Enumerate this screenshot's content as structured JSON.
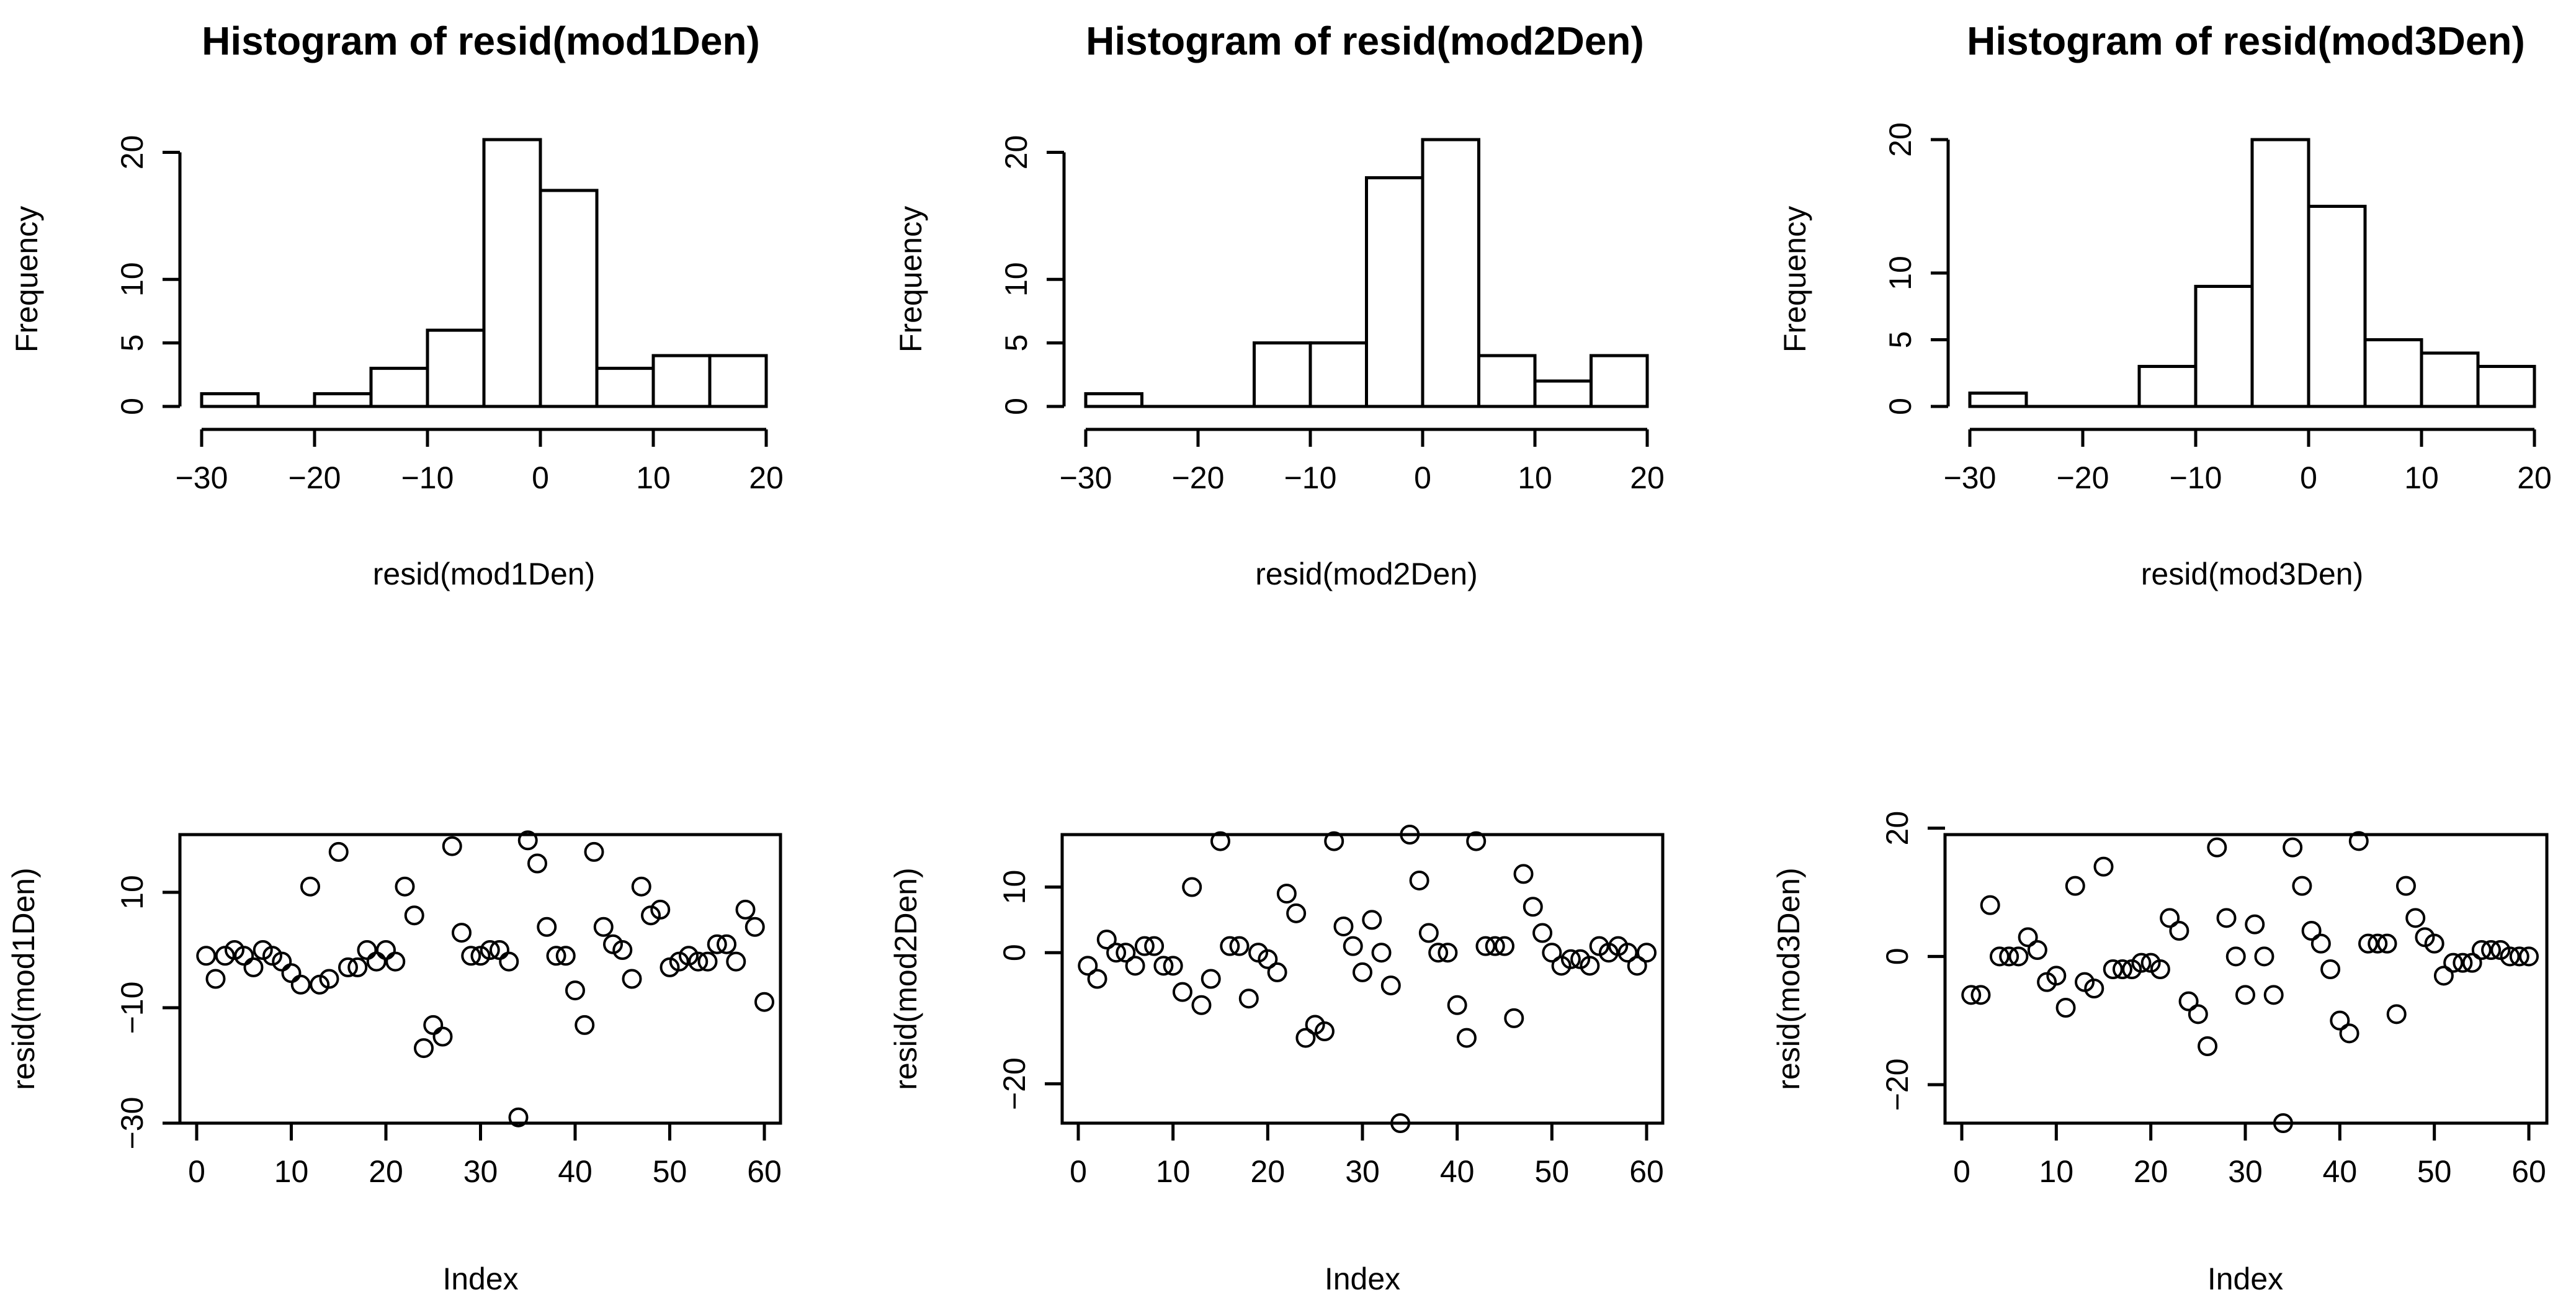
{
  "chart_data": [
    {
      "type": "histogram",
      "title": "Histogram of resid(mod1Den)",
      "xlabel": "resid(mod1Den)",
      "ylabel": "Frequency",
      "bins": [
        [
          -30,
          -25
        ],
        [
          -25,
          -20
        ],
        [
          -20,
          -15
        ],
        [
          -15,
          -10
        ],
        [
          -10,
          -5
        ],
        [
          -5,
          0
        ],
        [
          0,
          5
        ],
        [
          5,
          10
        ],
        [
          10,
          15
        ],
        [
          15,
          20
        ]
      ],
      "values": [
        1,
        0,
        1,
        3,
        6,
        21,
        17,
        3,
        4,
        4
      ],
      "xlim": [
        -30,
        20
      ],
      "ylim": [
        0,
        21
      ],
      "xticks": [
        -30,
        -20,
        -10,
        0,
        10,
        20
      ],
      "yticks": [
        0,
        5,
        10,
        20
      ],
      "grid": false
    },
    {
      "type": "histogram",
      "title": "Histogram of resid(mod2Den)",
      "xlabel": "resid(mod2Den)",
      "ylabel": "Frequency",
      "bins": [
        [
          -30,
          -25
        ],
        [
          -25,
          -20
        ],
        [
          -20,
          -15
        ],
        [
          -15,
          -10
        ],
        [
          -10,
          -5
        ],
        [
          -5,
          0
        ],
        [
          0,
          5
        ],
        [
          5,
          10
        ],
        [
          10,
          15
        ],
        [
          15,
          20
        ]
      ],
      "values": [
        1,
        0,
        0,
        5,
        5,
        18,
        21,
        4,
        2,
        4
      ],
      "xlim": [
        -30,
        20
      ],
      "ylim": [
        0,
        21
      ],
      "xticks": [
        -30,
        -20,
        -10,
        0,
        10,
        20
      ],
      "yticks": [
        0,
        5,
        10,
        20
      ],
      "grid": false
    },
    {
      "type": "histogram",
      "title": "Histogram of resid(mod3Den)",
      "xlabel": "resid(mod3Den)",
      "ylabel": "Frequency",
      "bins": [
        [
          -30,
          -25
        ],
        [
          -25,
          -20
        ],
        [
          -20,
          -15
        ],
        [
          -15,
          -10
        ],
        [
          -10,
          -5
        ],
        [
          -5,
          0
        ],
        [
          0,
          5
        ],
        [
          5,
          10
        ],
        [
          10,
          15
        ],
        [
          15,
          20
        ]
      ],
      "values": [
        1,
        0,
        0,
        3,
        9,
        20,
        15,
        5,
        4,
        3
      ],
      "xlim": [
        -30,
        20
      ],
      "ylim": [
        0,
        20
      ],
      "xticks": [
        -30,
        -20,
        -10,
        0,
        10,
        20
      ],
      "yticks": [
        0,
        5,
        10,
        20
      ],
      "grid": false
    },
    {
      "type": "scatter",
      "title": "",
      "xlabel": "Index",
      "ylabel": "resid(mod1Den)",
      "x": [
        1,
        2,
        3,
        4,
        5,
        6,
        7,
        8,
        9,
        10,
        11,
        12,
        13,
        14,
        15,
        16,
        17,
        18,
        19,
        20,
        21,
        22,
        23,
        24,
        25,
        26,
        27,
        28,
        29,
        30,
        31,
        32,
        33,
        34,
        35,
        36,
        37,
        38,
        39,
        40,
        41,
        42,
        43,
        44,
        45,
        46,
        47,
        48,
        49,
        50,
        51,
        52,
        53,
        54,
        55,
        56,
        57,
        58,
        59,
        60
      ],
      "y": [
        -1,
        -5,
        -1,
        0,
        -1,
        -3,
        0,
        -1,
        -2,
        -4,
        -6,
        11,
        -6,
        -5,
        17,
        -3,
        -3,
        0,
        -2,
        0,
        -2,
        11,
        6,
        -17,
        -13,
        -15,
        18,
        3,
        -1,
        -1,
        0,
        0,
        -2,
        -29,
        19,
        15,
        4,
        -1,
        -1,
        -7,
        -13,
        17,
        4,
        1,
        0,
        -5,
        11,
        6,
        7,
        -3,
        -2,
        -1,
        -2,
        -2,
        1,
        1,
        -2,
        7,
        4,
        -9
      ],
      "xlim": [
        0,
        60
      ],
      "ylim": [
        -30,
        20
      ],
      "xticks": [
        0,
        10,
        20,
        30,
        40,
        50,
        60
      ],
      "yticks": [
        -30,
        -10,
        10
      ],
      "grid": false
    },
    {
      "type": "scatter",
      "title": "",
      "xlabel": "Index",
      "ylabel": "resid(mod2Den)",
      "x": [
        1,
        2,
        3,
        4,
        5,
        6,
        7,
        8,
        9,
        10,
        11,
        12,
        13,
        14,
        15,
        16,
        17,
        18,
        19,
        20,
        21,
        22,
        23,
        24,
        25,
        26,
        27,
        28,
        29,
        30,
        31,
        32,
        33,
        34,
        35,
        36,
        37,
        38,
        39,
        40,
        41,
        42,
        43,
        44,
        45,
        46,
        47,
        48,
        49,
        50,
        51,
        52,
        53,
        54,
        55,
        56,
        57,
        58,
        59,
        60
      ],
      "y": [
        -2,
        -4,
        2,
        0,
        0,
        -2,
        1,
        1,
        -2,
        -2,
        -6,
        10,
        -8,
        -4,
        17,
        1,
        1,
        -7,
        0,
        -1,
        -3,
        9,
        6,
        -13,
        -11,
        -12,
        17,
        4,
        1,
        -3,
        5,
        0,
        -5,
        -26,
        18,
        11,
        3,
        0,
        0,
        -8,
        -13,
        17,
        1,
        1,
        1,
        -10,
        12,
        7,
        3,
        0,
        -2,
        -1,
        -1,
        -2,
        1,
        0,
        1,
        0,
        -2,
        0
      ],
      "xlim": [
        0,
        60
      ],
      "ylim": [
        -26,
        18
      ],
      "xticks": [
        0,
        10,
        20,
        30,
        40,
        50,
        60
      ],
      "yticks": [
        -20,
        0,
        10
      ],
      "grid": false
    },
    {
      "type": "scatter",
      "title": "",
      "xlabel": "Index",
      "ylabel": "resid(mod3Den)",
      "x": [
        1,
        2,
        3,
        4,
        5,
        6,
        7,
        8,
        9,
        10,
        11,
        12,
        13,
        14,
        15,
        16,
        17,
        18,
        19,
        20,
        21,
        22,
        23,
        24,
        25,
        26,
        27,
        28,
        29,
        30,
        31,
        32,
        33,
        34,
        35,
        36,
        37,
        38,
        39,
        40,
        41,
        42,
        43,
        44,
        45,
        46,
        47,
        48,
        49,
        50,
        51,
        52,
        53,
        54,
        55,
        56,
        57,
        58,
        59,
        60
      ],
      "y": [
        -6,
        -6,
        8,
        0,
        0,
        0,
        3,
        1,
        -4,
        -3,
        -8,
        11,
        -4,
        -5,
        14,
        -2,
        -2,
        -2,
        -1,
        -1,
        -2,
        6,
        4,
        -7,
        -9,
        -14,
        17,
        6,
        0,
        -6,
        5,
        0,
        -6,
        -26,
        17,
        11,
        4,
        2,
        -2,
        -10,
        -12,
        18,
        2,
        2,
        2,
        -9,
        11,
        6,
        3,
        2,
        -3,
        -1,
        -1,
        -1,
        1,
        1,
        1,
        0,
        0,
        0
      ],
      "xlim": [
        0,
        60
      ],
      "ylim": [
        -26,
        19
      ],
      "xticks": [
        0,
        10,
        20,
        30,
        40,
        50,
        60
      ],
      "yticks": [
        -20,
        0,
        20
      ],
      "grid": false
    }
  ]
}
